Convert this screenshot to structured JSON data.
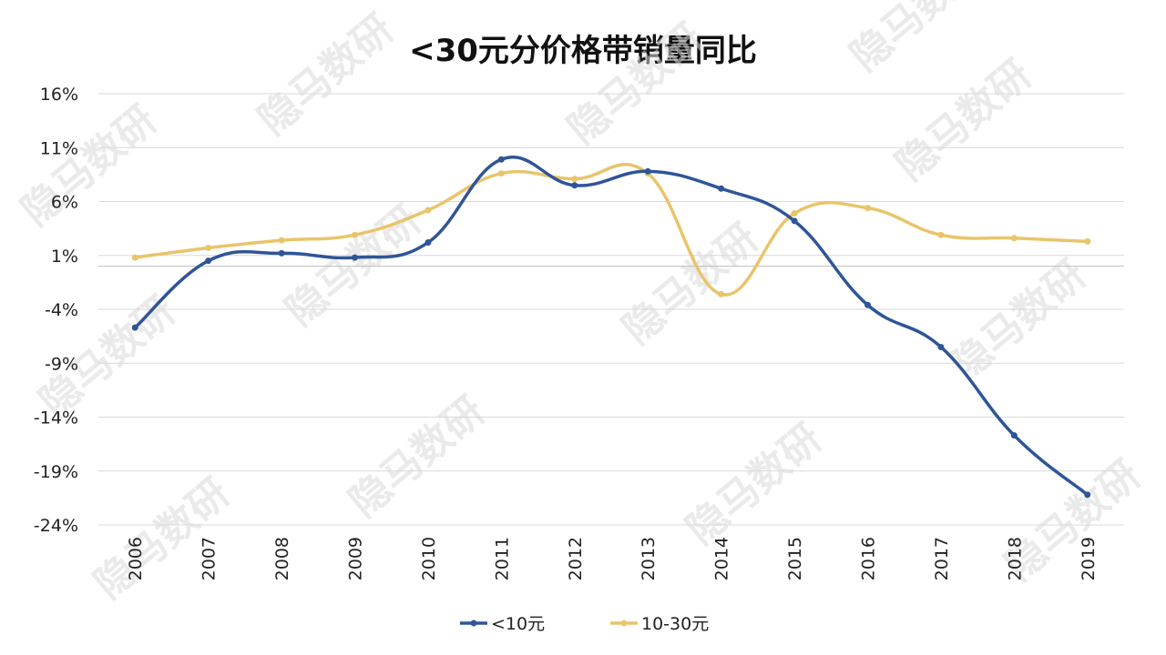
{
  "chart_data": {
    "type": "line",
    "title": "<30元分价格带销量同比",
    "categories": [
      "2006",
      "2007",
      "2008",
      "2009",
      "2010",
      "2011",
      "2012",
      "2013",
      "2014",
      "2015",
      "2016",
      "2017",
      "2018",
      "2019"
    ],
    "yticks": [
      "16%",
      "11%",
      "6%",
      "1%",
      "-4%",
      "-9%",
      "-14%",
      "-19%",
      "-24%"
    ],
    "ylim": [
      -24,
      16
    ],
    "grid": true,
    "legend_position": "bottom",
    "smooth": true,
    "series": [
      {
        "name": "<10元",
        "color": "#2f5597",
        "values": [
          -5.7,
          0.5,
          1.2,
          0.8,
          2.2,
          9.9,
          7.5,
          8.8,
          7.2,
          4.2,
          -3.6,
          -7.5,
          -15.7,
          -21.2
        ]
      },
      {
        "name": "10-30元",
        "color": "#e9c46a",
        "values": [
          0.8,
          1.7,
          2.4,
          2.9,
          5.2,
          8.6,
          8.1,
          8.6,
          -2.6,
          4.9,
          5.4,
          2.9,
          2.6,
          2.3
        ]
      }
    ]
  },
  "watermark": "隐马数研"
}
